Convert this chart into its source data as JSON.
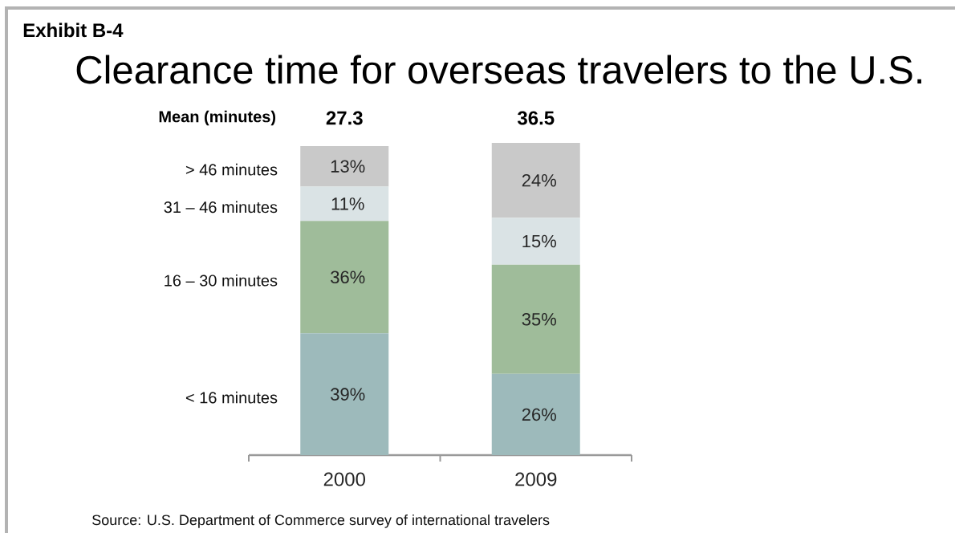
{
  "chart_data": {
    "type": "bar",
    "stacked": true,
    "title": "Clearance time for overseas travelers to the U.S.",
    "categories": [
      "2000",
      "2009"
    ],
    "series": [
      {
        "name": "< 16 minutes",
        "color": "#9dbabb",
        "values": [
          39,
          26
        ],
        "value_labels": [
          "39%",
          "26%"
        ]
      },
      {
        "name": "16 – 30 minutes",
        "color": "#9fbc9a",
        "values": [
          36,
          35
        ],
        "value_labels": [
          "36%",
          "35%"
        ]
      },
      {
        "name": "31 – 46 minutes",
        "color": "#dae3e5",
        "values": [
          11,
          15
        ],
        "value_labels": [
          "11%",
          "15%"
        ]
      },
      {
        "name": "> 46 minutes",
        "color": "#c9c9c9",
        "values": [
          13,
          24
        ],
        "value_labels": [
          "13%",
          "24%"
        ]
      }
    ],
    "annotations": [
      "Exhibit B-4",
      "Mean (minutes)",
      "27.3",
      "36.5",
      "Source:  U.S. Department of Commerce survey of international travelers"
    ]
  }
}
